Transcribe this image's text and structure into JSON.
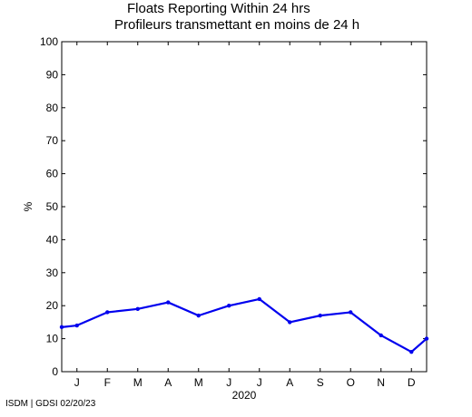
{
  "title": {
    "line1": "Floats Reporting Within 24 hrs",
    "line2": "Profileurs transmettant en moins de 24 h"
  },
  "footer": "ISDM | GDSI 02/20/23",
  "chart_data": {
    "type": "line",
    "title": "Floats Reporting Within 24 hrs / Profileurs transmettant en moins de 24 h",
    "xlabel": "2020",
    "ylabel": "%",
    "ylim": [
      0,
      100
    ],
    "yticks": [
      0,
      10,
      20,
      30,
      40,
      50,
      60,
      70,
      80,
      90,
      100
    ],
    "xticks": [
      "J",
      "F",
      "M",
      "A",
      "M",
      "J",
      "J",
      "A",
      "S",
      "O",
      "N",
      "D"
    ],
    "grid": false,
    "line_color": "#0000ee",
    "series": [
      {
        "points": [
          {
            "x": 0.0,
            "y": 13.5
          },
          {
            "x": 0.5,
            "y": 14
          },
          {
            "x": 1.5,
            "y": 18
          },
          {
            "x": 2.5,
            "y": 19
          },
          {
            "x": 3.5,
            "y": 21
          },
          {
            "x": 4.5,
            "y": 17
          },
          {
            "x": 5.5,
            "y": 20
          },
          {
            "x": 6.5,
            "y": 22
          },
          {
            "x": 7.5,
            "y": 15
          },
          {
            "x": 8.5,
            "y": 17
          },
          {
            "x": 9.5,
            "y": 18
          },
          {
            "x": 10.5,
            "y": 11
          },
          {
            "x": 11.5,
            "y": 6
          },
          {
            "x": 12.0,
            "y": 10
          }
        ]
      }
    ],
    "xlim": [
      0,
      12
    ]
  }
}
